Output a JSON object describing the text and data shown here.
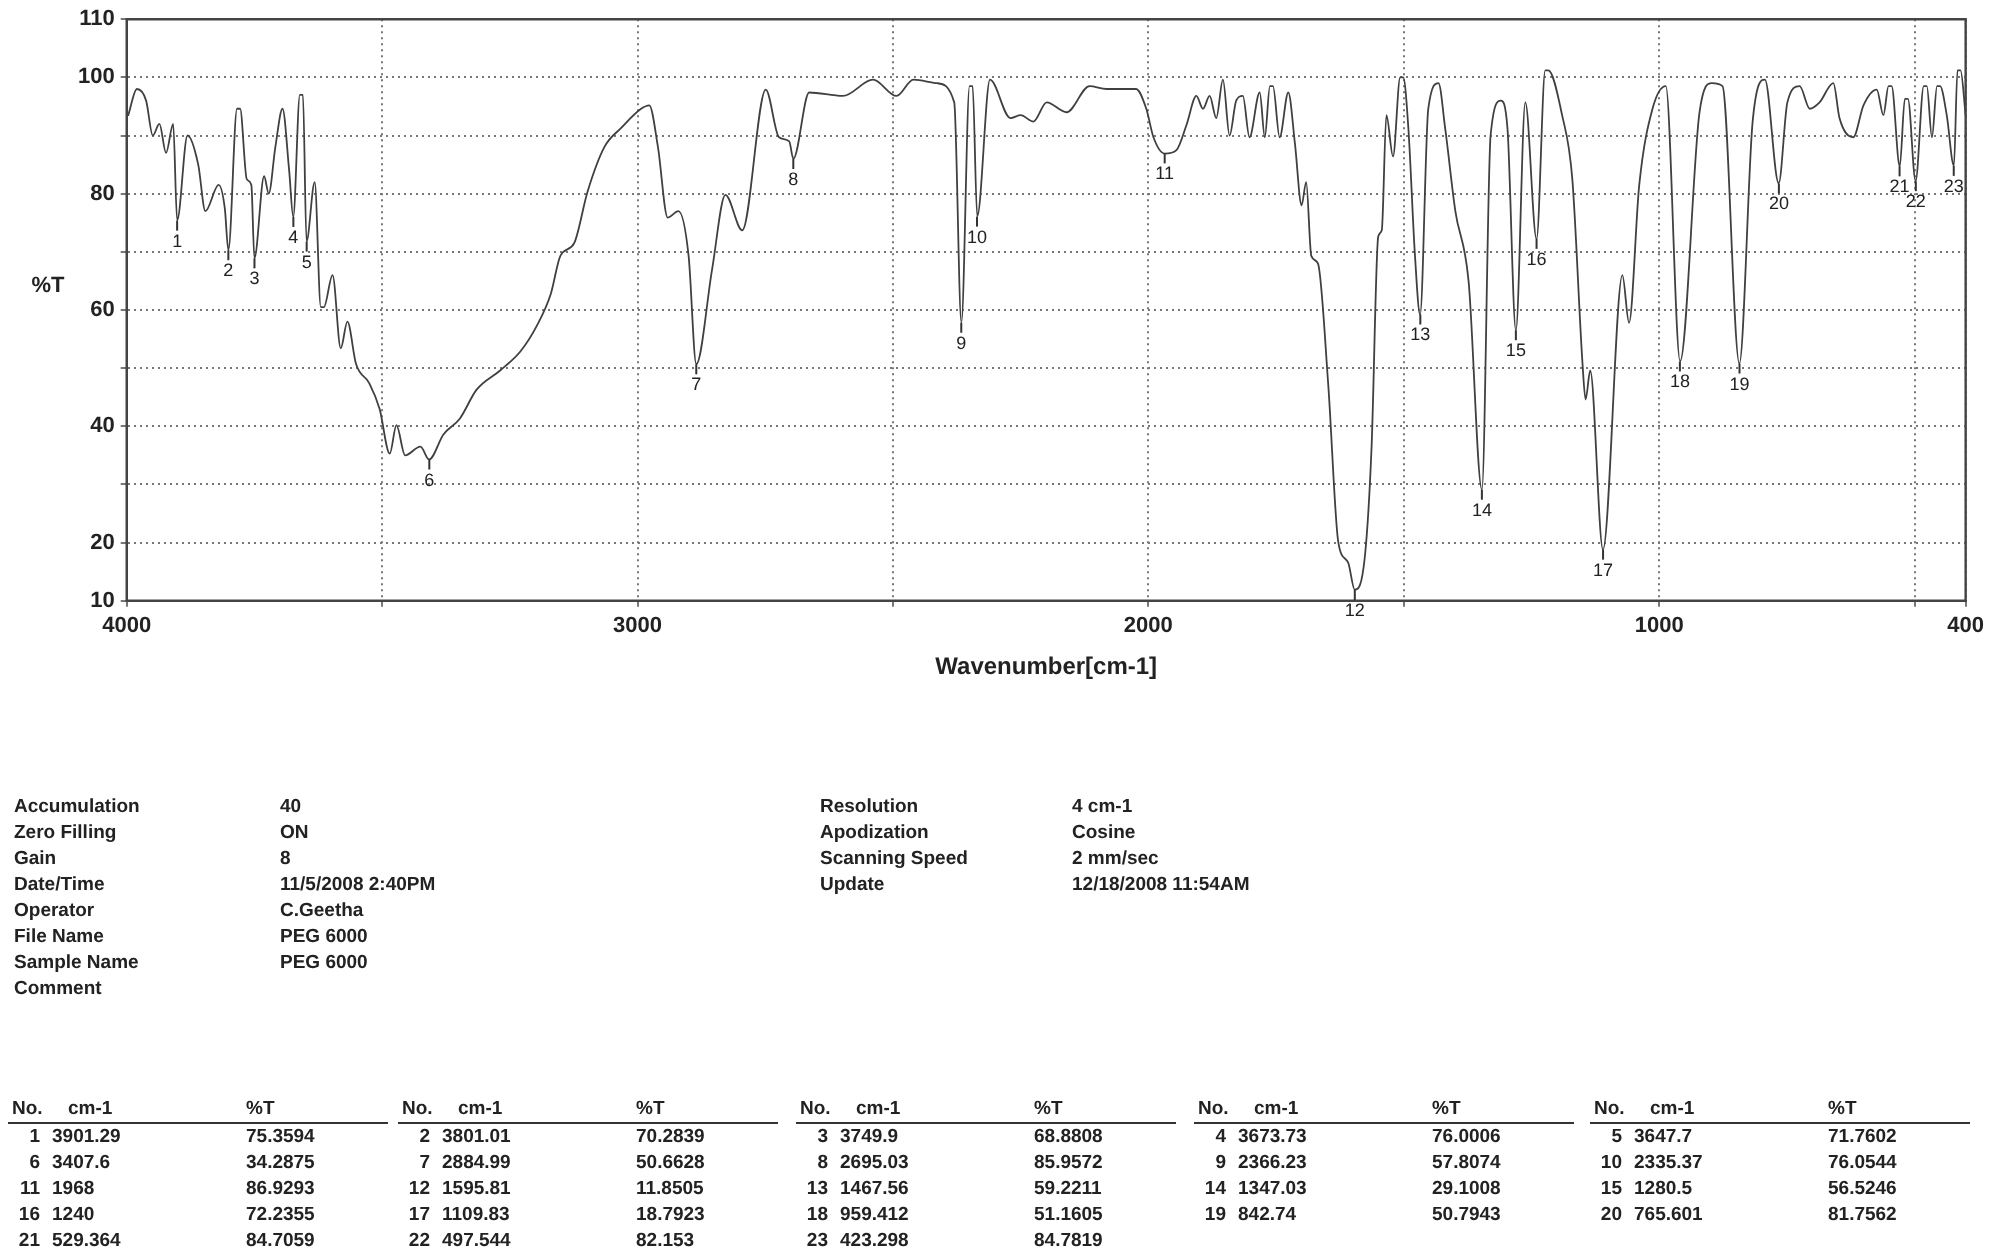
{
  "chart_data": {
    "type": "line",
    "xlabel": "Wavenumber[cm-1]",
    "ylabel": "%T",
    "xlim": [
      4000,
      400
    ],
    "xticks": [
      4000,
      {
        "value": 3500,
        "label": null
      },
      3000,
      {
        "value": 2500,
        "label": null
      },
      2000,
      {
        "value": 1500,
        "label": null
      },
      1000,
      {
        "value": 500,
        "label": null
      },
      400
    ],
    "ylim": [
      10,
      110
    ],
    "yticks": [
      10,
      20,
      {
        "value": 30,
        "label": null
      },
      40,
      {
        "value": 50,
        "label": null
      },
      60,
      {
        "value": 70,
        "label": null
      },
      80,
      {
        "value": 90,
        "label": null
      },
      100,
      110
    ],
    "grid": true,
    "legend": false,
    "marker": "none",
    "line_style": "solid",
    "series": [
      {
        "color": "#404040",
        "x": [
          3997,
          3980,
          3962,
          3949,
          3936,
          3923,
          3909,
          3901.29,
          3881,
          3860,
          3846,
          3820,
          3808,
          3801,
          3784,
          3778,
          3765,
          3756,
          3750,
          3731,
          3722,
          3709,
          3695,
          3682,
          3674,
          3661,
          3655,
          3648,
          3632,
          3620,
          3614,
          3597,
          3581,
          3568,
          3551,
          3525,
          3505,
          3485,
          3472,
          3455,
          3425,
          3408,
          3380,
          3348,
          3315,
          3269,
          3229,
          3197,
          3170,
          3151,
          3124,
          3098,
          3065,
          3032,
          2993,
          2977,
          2960,
          2941,
          2920,
          2900,
          2885,
          2854,
          2828,
          2795,
          2749,
          2723,
          2703,
          2695,
          2664,
          2598,
          2539,
          2493,
          2460,
          2414,
          2380,
          2366,
          2350,
          2344,
          2335,
          2310,
          2270,
          2250,
          2225,
          2199,
          2160,
          2115,
          2082,
          2024,
          2004,
          1990,
          1968,
          1945,
          1925,
          1906,
          1893,
          1880,
          1867,
          1854,
          1841,
          1828,
          1815,
          1802,
          1782,
          1772,
          1762,
          1756,
          1743,
          1726,
          1713,
          1700,
          1691,
          1681,
          1668,
          1648,
          1628,
          1609,
          1596,
          1576,
          1563,
          1550,
          1543,
          1534,
          1521,
          1507,
          1501,
          1491,
          1478,
          1468,
          1452,
          1432,
          1419,
          1399,
          1373,
          1347,
          1330,
          1310,
          1297,
          1280.5,
          1262,
          1240,
          1223,
          1217,
          1190,
          1170,
          1150,
          1144,
          1135,
          1110,
          1072,
          1059,
          1039,
          1013,
          987,
          959,
          921,
          897,
          876,
          843,
          817,
          793,
          766,
          749,
          725,
          705,
          686,
          659,
          647,
          620,
          600,
          574,
          561,
          551,
          545,
          529,
          519,
          513,
          498,
          482,
          476,
          466,
          456,
          450,
          437,
          423,
          416,
          410,
          400
        ],
        "values": [
          93.5,
          98,
          96,
          90,
          92,
          87,
          92,
          75.4,
          90,
          85,
          77,
          81.5,
          77.5,
          70.3,
          94.6,
          94.6,
          82.5,
          81.5,
          68.9,
          83,
          80,
          88,
          94.6,
          84,
          76,
          97,
          97,
          71.8,
          82,
          60.5,
          60.5,
          66,
          53.4,
          58,
          50.7,
          47.4,
          43,
          35.3,
          40.2,
          35,
          36.5,
          34.3,
          38.6,
          41.3,
          46.3,
          49.6,
          52.9,
          57.3,
          62.7,
          69.3,
          71.5,
          80.3,
          88,
          91.3,
          94.6,
          95.2,
          88,
          75.9,
          77,
          69.3,
          50.7,
          67,
          79.8,
          73.7,
          97.9,
          89.7,
          89,
          86,
          97.4,
          96.8,
          99.6,
          96.8,
          99.6,
          99,
          95.7,
          57.8,
          98.5,
          98.5,
          76.1,
          99.6,
          93,
          93.5,
          92.4,
          95.7,
          94,
          98.5,
          98,
          98,
          94.6,
          89.7,
          86.9,
          87.5,
          91.9,
          96.8,
          94.6,
          96.8,
          93,
          99.6,
          90,
          96,
          96.8,
          89.7,
          97.4,
          89.7,
          98.5,
          98.5,
          89.7,
          97.4,
          88.6,
          78,
          82,
          69.3,
          68,
          47.4,
          20,
          16.6,
          11.9,
          17.7,
          36.4,
          72.6,
          73.7,
          93.5,
          86.4,
          100,
          100,
          91.3,
          69.3,
          59.2,
          94.6,
          99,
          91.3,
          77,
          64.9,
          29.1,
          90,
          96,
          91.3,
          56.5,
          95.7,
          72.2,
          101.2,
          101.2,
          93.5,
          82.5,
          50.7,
          44.6,
          49.6,
          18.8,
          66,
          57.8,
          81.5,
          94.6,
          98.5,
          51.2,
          94,
          99,
          98.5,
          50.8,
          92.4,
          99.6,
          81.8,
          95.7,
          98.5,
          94.6,
          95.7,
          99,
          93,
          89.7,
          95.2,
          97.9,
          93.5,
          98.5,
          98.5,
          84.7,
          96.3,
          96.3,
          82.2,
          98.5,
          98.5,
          89.7,
          98.5,
          98.5,
          93.5,
          84.8,
          101.2,
          101.2,
          93.5
        ]
      }
    ],
    "annotations": [
      {
        "text": "1",
        "x": 3901.29,
        "y": 75.3594
      },
      {
        "text": "2",
        "x": 3801.01,
        "y": 70.2839
      },
      {
        "text": "3",
        "x": 3749.9,
        "y": 68.8808
      },
      {
        "text": "4",
        "x": 3673.73,
        "y": 76.0006
      },
      {
        "text": "5",
        "x": 3647.7,
        "y": 71.7602
      },
      {
        "text": "6",
        "x": 3407.6,
        "y": 34.2875
      },
      {
        "text": "7",
        "x": 2884.99,
        "y": 50.6628
      },
      {
        "text": "8",
        "x": 2695.03,
        "y": 85.9572
      },
      {
        "text": "9",
        "x": 2366.23,
        "y": 57.8074
      },
      {
        "text": "10",
        "x": 2335.37,
        "y": 76.0544
      },
      {
        "text": "11",
        "x": 1968,
        "y": 86.9293
      },
      {
        "text": "12",
        "x": 1595.81,
        "y": 11.8505
      },
      {
        "text": "13",
        "x": 1467.56,
        "y": 59.2211
      },
      {
        "text": "14",
        "x": 1347.03,
        "y": 29.1008
      },
      {
        "text": "15",
        "x": 1280.5,
        "y": 56.5246
      },
      {
        "text": "16",
        "x": 1240,
        "y": 72.2355
      },
      {
        "text": "17",
        "x": 1109.83,
        "y": 18.7923
      },
      {
        "text": "18",
        "x": 959.412,
        "y": 51.1605
      },
      {
        "text": "19",
        "x": 842.74,
        "y": 50.7943
      },
      {
        "text": "20",
        "x": 765.601,
        "y": 81.7562
      },
      {
        "text": "21",
        "x": 529.364,
        "y": 84.7059
      },
      {
        "text": "22",
        "x": 497.544,
        "y": 82.153
      },
      {
        "text": "23",
        "x": 423.298,
        "y": 84.7819
      },
      "No.",
      "cm-1",
      "%T",
      "Accumulation",
      "40",
      "Zero Filling",
      "ON",
      "Gain",
      "8",
      "Date/Time",
      "11/5/2008 2:40PM",
      "Operator",
      "C.Geetha",
      "File Name",
      "PEG 6000",
      "Sample Name",
      "PEG 6000",
      "Resolution",
      "4 cm-1",
      "Apodization",
      "Cosine",
      "Scanning Speed",
      "2 mm/sec",
      "Update",
      "12/18/2008 11:54AM",
      "Comment",
      "3901.29",
      "75.3594",
      "3801.01",
      "70.2839",
      "3749.9",
      "68.8808",
      "3673.73",
      "76.0006",
      "3647.7",
      "71.7602",
      "3407.6",
      "34.2875",
      "2884.99",
      "50.6628",
      "2695.03",
      "85.9572",
      "2366.23",
      "57.8074",
      "2335.37",
      "76.0544",
      "1968",
      "86.9293",
      "1595.81",
      "11.8505",
      "1467.56",
      "59.2211",
      "1347.03",
      "29.1008",
      "1280.5",
      "56.5246",
      "1240",
      "72.2355",
      "1109.83",
      "18.7923",
      "959.412",
      "51.1605",
      "842.74",
      "50.7943",
      "765.601",
      "81.7562",
      "529.364",
      "84.7059",
      "497.544",
      "82.153",
      "423.298",
      "84.7819"
    ]
  }
}
